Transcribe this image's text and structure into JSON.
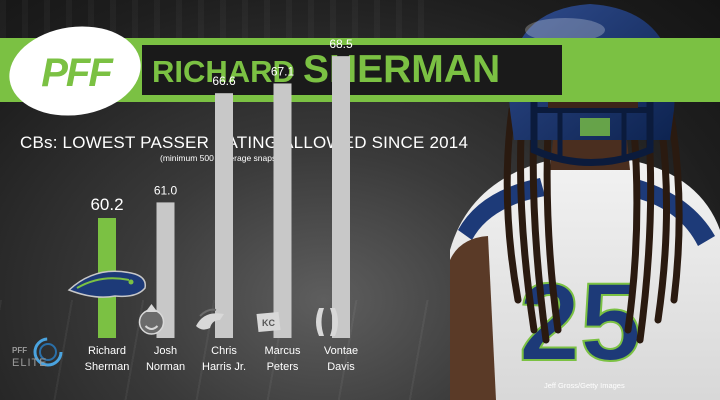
{
  "header": {
    "logo_text": "PFF",
    "player_first": "RICHARD",
    "player_last": "SHERMAN"
  },
  "colors": {
    "accent_green": "#7bc143",
    "bar_gray": "#c8c8c8",
    "background": "#2a2a2a"
  },
  "chart_data": {
    "type": "bar",
    "title": "CBs: LOWEST PASSER RATING ALLOWED SINCE 2014",
    "subtitle": "(minimum 500 coverage snaps)",
    "categories": [
      "Richard\nSherman",
      "Josh\nNorman",
      "Chris\nHarris Jr.",
      "Marcus\nPeters",
      "Vontae\nDavis"
    ],
    "category_lines": [
      [
        "Richard",
        "Sherman"
      ],
      [
        "Josh",
        "Norman"
      ],
      [
        "Chris",
        "Harris Jr."
      ],
      [
        "Marcus",
        "Peters"
      ],
      [
        "Vontae",
        "Davis"
      ]
    ],
    "values": [
      60.2,
      61.0,
      66.6,
      67.1,
      68.5
    ],
    "value_labels": [
      "60.2",
      "61.0",
      "66.6",
      "67.1",
      "68.5"
    ],
    "team_icons": [
      "seahawks-icon",
      "redskins-icon",
      "broncos-icon",
      "chiefs-icon",
      "colts-icon"
    ],
    "highlight_index": 0,
    "xlabel": "",
    "ylabel": "",
    "grid": false,
    "legend": "none"
  },
  "branding": {
    "elite_pff": "PFF",
    "elite_label": "ELITE"
  },
  "photo_credit": "Jeff Gross/Getty Images"
}
